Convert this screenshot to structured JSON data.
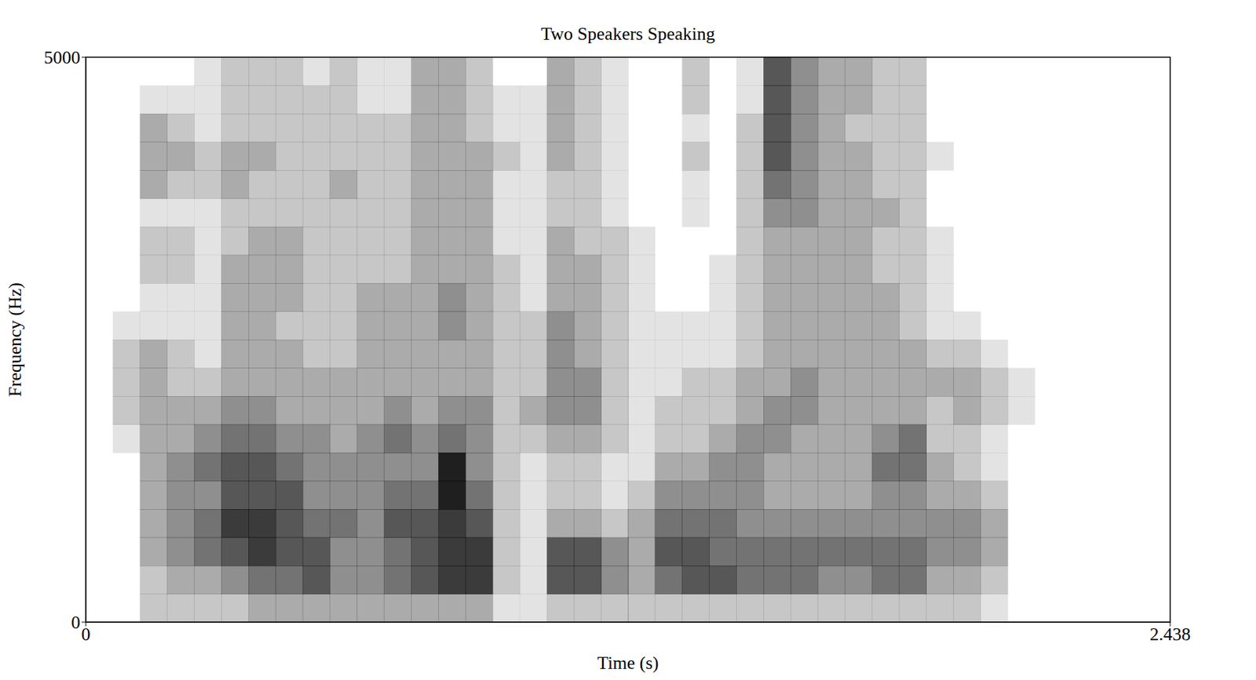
{
  "chart_data": {
    "type": "heatmap",
    "title": "Two Speakers Speaking",
    "x_label": "Time (s)",
    "y_label": "Frequency (Hz)",
    "color": "#000000",
    "xlim": [
      0,
      2.438
    ],
    "xticks": [
      0,
      2.438
    ],
    "ylim": [
      0,
      5000
    ],
    "yticks": [
      0,
      5000
    ],
    "x": [
      0.03,
      0.091,
      0.152,
      0.213,
      0.274,
      0.335,
      0.396,
      0.457,
      0.518,
      0.579,
      0.64,
      0.701,
      0.762,
      0.823,
      0.884,
      0.945,
      1.006,
      1.067,
      1.128,
      1.189,
      1.249,
      1.31,
      1.371,
      1.432,
      1.493,
      1.554,
      1.615,
      1.676,
      1.737,
      1.798,
      1.859,
      1.92,
      1.981,
      2.042,
      2.103,
      2.164,
      2.225,
      2.286,
      2.347,
      2.408
    ],
    "y": [
      125,
      375,
      625,
      875,
      1125,
      1375,
      1625,
      1875,
      2125,
      2375,
      2625,
      2875,
      3125,
      3375,
      3625,
      3875,
      4125,
      4375,
      4625,
      4875
    ],
    "cells": [
      [
        0,
        0,
        0,
        0,
        0,
        0,
        0,
        0,
        0,
        0,
        0,
        0,
        0,
        0,
        0,
        0,
        0,
        0,
        0,
        0
      ],
      [
        0,
        0,
        0,
        0,
        0,
        0,
        1,
        2,
        2,
        2,
        1,
        0,
        0,
        0,
        0,
        0,
        0,
        0,
        0,
        0
      ],
      [
        2,
        2,
        3,
        3,
        3,
        3,
        3,
        3,
        3,
        3,
        1,
        1,
        2,
        2,
        1,
        3,
        3,
        3,
        1,
        0
      ],
      [
        2,
        3,
        4,
        4,
        4,
        4,
        3,
        3,
        2,
        2,
        1,
        1,
        2,
        2,
        1,
        2,
        3,
        2,
        1,
        0
      ],
      [
        2,
        3,
        5,
        5,
        4,
        5,
        4,
        3,
        2,
        1,
        1,
        1,
        1,
        1,
        1,
        2,
        2,
        1,
        1,
        1
      ],
      [
        2,
        4,
        6,
        7,
        6,
        6,
        5,
        4,
        3,
        3,
        3,
        3,
        3,
        2,
        2,
        3,
        3,
        2,
        2,
        2
      ],
      [
        3,
        5,
        7,
        7,
        6,
        6,
        5,
        4,
        3,
        3,
        3,
        3,
        3,
        3,
        2,
        2,
        3,
        2,
        2,
        2
      ],
      [
        3,
        5,
        6,
        6,
        6,
        5,
        4,
        3,
        3,
        3,
        2,
        3,
        3,
        3,
        2,
        2,
        2,
        2,
        2,
        2
      ],
      [
        3,
        6,
        6,
        5,
        4,
        4,
        4,
        3,
        3,
        2,
        2,
        2,
        2,
        2,
        2,
        2,
        2,
        2,
        2,
        1
      ],
      [
        3,
        4,
        4,
        5,
        4,
        4,
        3,
        3,
        3,
        2,
        2,
        2,
        2,
        2,
        2,
        3,
        2,
        2,
        2,
        2
      ],
      [
        3,
        4,
        4,
        4,
        4,
        4,
        4,
        3,
        3,
        3,
        3,
        3,
        2,
        2,
        2,
        2,
        2,
        2,
        1,
        1
      ],
      [
        3,
        5,
        5,
        6,
        5,
        4,
        5,
        4,
        3,
        3,
        3,
        3,
        2,
        2,
        2,
        2,
        2,
        2,
        1,
        1
      ],
      [
        3,
        6,
        6,
        6,
        5,
        4,
        4,
        3,
        3,
        3,
        3,
        3,
        3,
        3,
        3,
        3,
        3,
        3,
        3,
        3
      ],
      [
        3,
        7,
        7,
        7,
        8,
        8,
        5,
        4,
        3,
        3,
        4,
        4,
        3,
        3,
        3,
        3,
        3,
        3,
        3,
        3
      ],
      [
        3,
        7,
        7,
        6,
        5,
        4,
        4,
        4,
        3,
        3,
        3,
        3,
        3,
        3,
        3,
        3,
        3,
        2,
        2,
        2
      ],
      [
        1,
        2,
        2,
        2,
        2,
        2,
        2,
        2,
        2,
        2,
        2,
        2,
        2,
        1,
        1,
        1,
        2,
        1,
        1,
        0
      ],
      [
        1,
        1,
        1,
        1,
        1,
        1,
        2,
        3,
        2,
        2,
        2,
        1,
        1,
        1,
        1,
        1,
        1,
        1,
        1,
        0
      ],
      [
        2,
        6,
        6,
        3,
        2,
        2,
        3,
        4,
        4,
        4,
        4,
        3,
        3,
        3,
        2,
        2,
        3,
        3,
        3,
        3
      ],
      [
        2,
        6,
        6,
        3,
        2,
        2,
        3,
        4,
        4,
        3,
        3,
        3,
        3,
        2,
        2,
        2,
        2,
        2,
        2,
        2
      ],
      [
        2,
        4,
        4,
        2,
        1,
        1,
        2,
        2,
        2,
        2,
        2,
        2,
        2,
        2,
        1,
        1,
        1,
        1,
        1,
        1
      ],
      [
        2,
        3,
        3,
        3,
        2,
        1,
        1,
        1,
        1,
        1,
        1,
        1,
        1,
        1,
        0,
        0,
        0,
        0,
        0,
        0
      ],
      [
        2,
        5,
        6,
        5,
        4,
        3,
        2,
        2,
        1,
        1,
        1,
        0,
        0,
        0,
        0,
        0,
        0,
        0,
        0,
        0
      ],
      [
        2,
        6,
        6,
        5,
        4,
        3,
        2,
        2,
        2,
        1,
        1,
        0,
        0,
        0,
        1,
        1,
        2,
        1,
        2,
        2
      ],
      [
        2,
        6,
        5,
        5,
        4,
        4,
        3,
        2,
        2,
        1,
        1,
        1,
        1,
        0,
        0,
        0,
        0,
        0,
        0,
        0
      ],
      [
        2,
        5,
        5,
        4,
        4,
        4,
        4,
        3,
        3,
        2,
        2,
        2,
        2,
        2,
        2,
        2,
        2,
        2,
        1,
        1
      ],
      [
        2,
        5,
        5,
        4,
        3,
        3,
        4,
        4,
        3,
        3,
        3,
        3,
        3,
        3,
        4,
        5,
        6,
        6,
        6,
        6
      ],
      [
        2,
        5,
        5,
        4,
        3,
        3,
        3,
        4,
        4,
        3,
        3,
        3,
        3,
        3,
        4,
        4,
        4,
        4,
        4,
        4
      ],
      [
        2,
        4,
        5,
        4,
        3,
        3,
        3,
        3,
        3,
        3,
        3,
        3,
        3,
        3,
        3,
        3,
        3,
        3,
        3,
        3
      ],
      [
        2,
        4,
        5,
        4,
        3,
        3,
        3,
        3,
        3,
        3,
        3,
        3,
        3,
        3,
        3,
        3,
        3,
        2,
        3,
        3
      ],
      [
        2,
        5,
        5,
        4,
        4,
        5,
        4,
        3,
        3,
        3,
        3,
        3,
        2,
        2,
        3,
        2,
        2,
        2,
        2,
        2
      ],
      [
        2,
        5,
        5,
        4,
        4,
        5,
        5,
        3,
        3,
        3,
        2,
        2,
        2,
        2,
        2,
        2,
        2,
        2,
        2,
        2
      ],
      [
        2,
        3,
        4,
        4,
        3,
        3,
        2,
        2,
        3,
        2,
        1,
        1,
        1,
        1,
        0,
        0,
        1,
        0,
        0,
        0
      ],
      [
        2,
        3,
        4,
        4,
        3,
        2,
        2,
        3,
        3,
        2,
        1,
        0,
        0,
        0,
        0,
        0,
        0,
        0,
        0,
        0
      ],
      [
        1,
        2,
        3,
        3,
        2,
        1,
        1,
        2,
        2,
        1,
        0,
        0,
        0,
        0,
        0,
        0,
        0,
        0,
        0,
        0
      ],
      [
        0,
        0,
        0,
        0,
        0,
        0,
        0,
        1,
        1,
        0,
        0,
        0,
        0,
        0,
        0,
        0,
        0,
        0,
        0,
        0
      ],
      [
        0,
        0,
        0,
        0,
        0,
        0,
        0,
        0,
        0,
        0,
        0,
        0,
        0,
        0,
        0,
        0,
        0,
        0,
        0,
        0
      ],
      [
        0,
        0,
        0,
        0,
        0,
        0,
        0,
        0,
        0,
        0,
        0,
        0,
        0,
        0,
        0,
        0,
        0,
        0,
        0,
        0
      ],
      [
        0,
        0,
        0,
        0,
        0,
        0,
        0,
        0,
        0,
        0,
        0,
        0,
        0,
        0,
        0,
        0,
        0,
        0,
        0,
        0
      ],
      [
        0,
        0,
        0,
        0,
        0,
        0,
        0,
        0,
        0,
        0,
        0,
        0,
        0,
        0,
        0,
        0,
        0,
        0,
        0,
        0
      ],
      [
        0,
        0,
        0,
        0,
        0,
        0,
        0,
        0,
        0,
        0,
        0,
        0,
        0,
        0,
        0,
        0,
        0,
        0,
        0,
        0
      ]
    ]
  }
}
